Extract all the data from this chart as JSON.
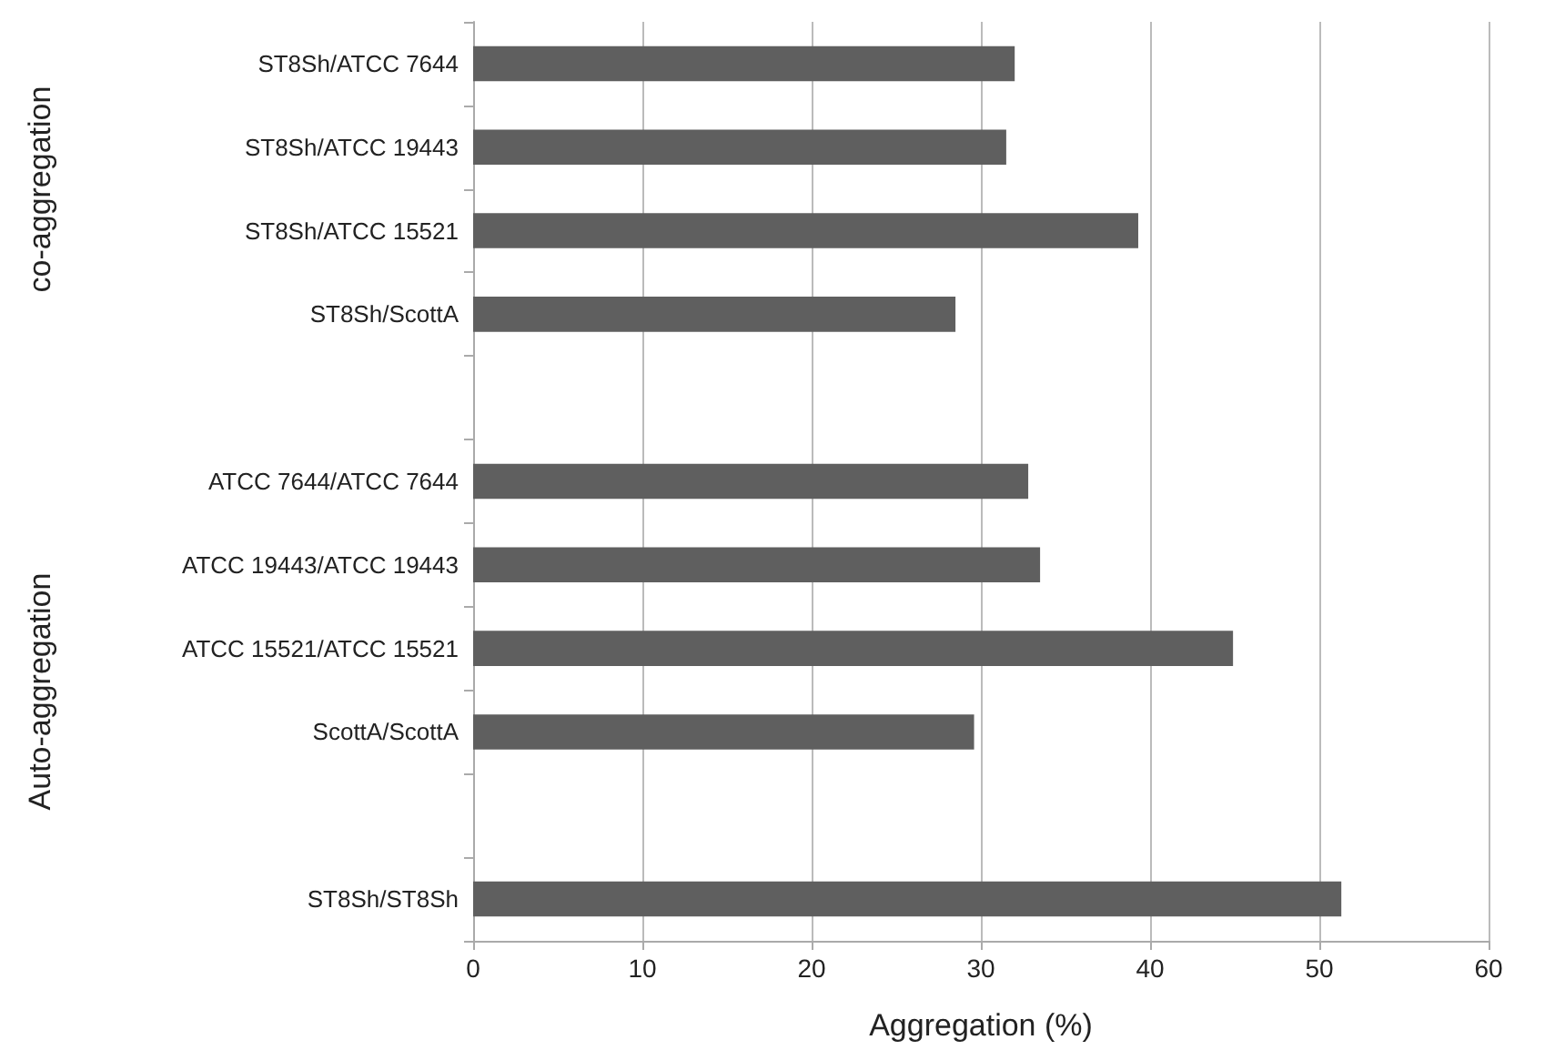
{
  "chart_data": {
    "type": "bar",
    "orientation": "horizontal",
    "xlabel": "Aggregation (%)",
    "categories": [
      "ST8Sh/ATCC 7644",
      "ST8Sh/ATCC 19443",
      "ST8Sh/ATCC 15521",
      "ST8Sh/ScottA",
      null,
      "ATCC 7644/ATCC 7644",
      "ATCC 19443/ATCC 19443",
      "ATCC 15521/ATCC 15521",
      "ScottA/ScottA",
      null,
      "ST8Sh/ST8Sh"
    ],
    "values": [
      32,
      31.5,
      39.3,
      28.5,
      null,
      32.8,
      33.5,
      44.9,
      29.6,
      null,
      51.3
    ],
    "color": "#5f5f5f",
    "xlim": [
      0,
      60
    ],
    "xticks": [
      0,
      10,
      20,
      30,
      40,
      50,
      60
    ],
    "grid": "x",
    "annotations": [
      "co-aggregation",
      "Auto-aggregation"
    ]
  }
}
